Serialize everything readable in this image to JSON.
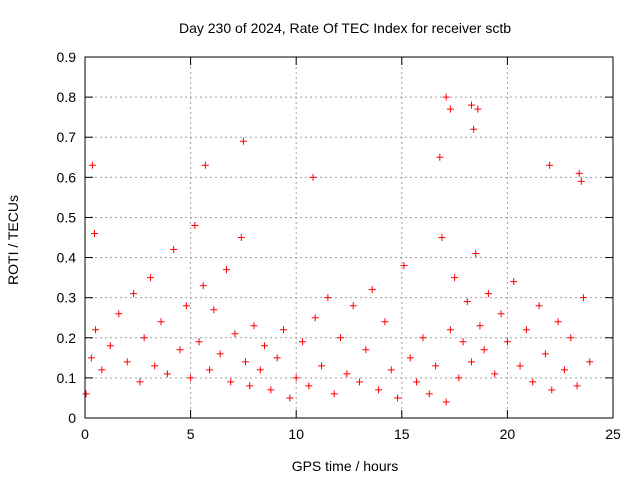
{
  "chart_data": {
    "type": "scatter",
    "title": "Day 230 of 2024, Rate Of TEC Index for receiver sctb",
    "xlabel": "GPS time / hours",
    "ylabel": "ROTI / TECUs",
    "xlim": [
      0,
      25
    ],
    "ylim": [
      0,
      0.9
    ],
    "xticks": [
      "0",
      "5",
      "10",
      "15",
      "20",
      "25"
    ],
    "yticks": [
      "0",
      "0.1",
      "0.2",
      "0.3",
      "0.4",
      "0.5",
      "0.6",
      "0.7",
      "0.8",
      "0.9"
    ],
    "grid": true,
    "legend": "none",
    "marker": "+",
    "color": "#ff0000",
    "x": [
      0.05,
      0.3,
      0.35,
      0.5,
      0.8,
      1.2,
      1.6,
      2.0,
      2.3,
      2.6,
      2.8,
      3.1,
      3.3,
      3.6,
      3.9,
      4.2,
      4.5,
      4.8,
      5.0,
      5.2,
      5.4,
      5.6,
      5.9,
      6.1,
      6.4,
      6.7,
      6.9,
      7.1,
      7.4,
      7.6,
      7.8,
      8.0,
      8.3,
      8.5,
      8.8,
      9.1,
      9.4,
      9.7,
      10.0,
      10.3,
      10.6,
      10.9,
      11.2,
      11.5,
      11.8,
      12.1,
      12.4,
      12.7,
      13.0,
      13.3,
      13.6,
      13.9,
      14.2,
      14.5,
      14.8,
      15.1,
      15.4,
      15.7,
      16.0,
      16.3,
      16.6,
      16.9,
      17.1,
      17.3,
      17.5,
      17.7,
      17.9,
      18.1,
      18.3,
      18.5,
      18.7,
      18.9,
      19.1,
      19.4,
      19.7,
      20.0,
      20.3,
      20.6,
      20.9,
      21.2,
      21.5,
      21.8,
      22.1,
      22.4,
      22.7,
      23.0,
      23.3,
      23.6,
      23.9,
      0.45,
      5.7,
      7.5,
      10.8,
      16.8,
      17.1,
      17.3,
      18.3,
      18.4,
      18.6,
      22.0,
      23.4,
      23.5
    ],
    "y": [
      0.06,
      0.15,
      0.63,
      0.22,
      0.12,
      0.18,
      0.26,
      0.14,
      0.31,
      0.09,
      0.2,
      0.35,
      0.13,
      0.24,
      0.11,
      0.42,
      0.17,
      0.28,
      0.1,
      0.48,
      0.19,
      0.33,
      0.12,
      0.27,
      0.16,
      0.37,
      0.09,
      0.21,
      0.45,
      0.14,
      0.08,
      0.23,
      0.12,
      0.18,
      0.07,
      0.15,
      0.22,
      0.05,
      0.1,
      0.19,
      0.08,
      0.25,
      0.13,
      0.3,
      0.06,
      0.2,
      0.11,
      0.28,
      0.09,
      0.17,
      0.32,
      0.07,
      0.24,
      0.12,
      0.05,
      0.38,
      0.15,
      0.09,
      0.2,
      0.06,
      0.13,
      0.45,
      0.04,
      0.22,
      0.35,
      0.1,
      0.19,
      0.29,
      0.14,
      0.41,
      0.23,
      0.17,
      0.31,
      0.11,
      0.26,
      0.19,
      0.34,
      0.13,
      0.22,
      0.09,
      0.28,
      0.16,
      0.07,
      0.24,
      0.12,
      0.2,
      0.08,
      0.3,
      0.14,
      0.46,
      0.63,
      0.69,
      0.6,
      0.65,
      0.8,
      0.77,
      0.78,
      0.72,
      0.77,
      0.63,
      0.61,
      0.59
    ]
  }
}
